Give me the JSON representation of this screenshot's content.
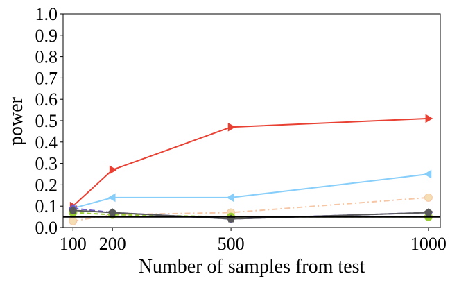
{
  "chart_data": {
    "type": "line",
    "xlabel": "Number of samples from test",
    "ylabel": "power",
    "xlim": [
      75,
      1030
    ],
    "ylim": [
      0.0,
      1.0
    ],
    "x_ticks": [
      100,
      200,
      500,
      1000
    ],
    "x_tick_labels": [
      "100",
      "200",
      "500",
      "1000"
    ],
    "y_ticks": [
      0.0,
      0.1,
      0.2,
      0.3,
      0.4,
      0.5,
      0.6,
      0.7,
      0.8,
      0.9,
      1.0
    ],
    "y_tick_labels": [
      "0.0",
      "0.1",
      "0.2",
      "0.3",
      "0.4",
      "0.5",
      "0.6",
      "0.7",
      "0.8",
      "0.9",
      "1.0"
    ],
    "x": [
      100,
      200,
      500,
      1000
    ],
    "reference_line": {
      "y": 0.05,
      "color": "#000000"
    },
    "series": [
      {
        "values": [
          0.03,
          0.06,
          0.07,
          0.14
        ],
        "color": "#f5c7a6",
        "dash": "8,4,2,4",
        "marker": "circle",
        "marker_fill": "#f5deb3"
      },
      {
        "values": [
          0.07,
          0.06,
          0.05,
          0.05
        ],
        "color": "#9acd32",
        "dash": "6,4",
        "marker": "circle",
        "marker_fill": "#9acd32"
      },
      {
        "values": [
          0.1,
          0.27,
          0.47,
          0.51
        ],
        "color": "#e84032",
        "dash": "",
        "marker": "triangle-right",
        "marker_fill": "#e84032"
      },
      {
        "values": [
          0.09,
          0.14,
          0.14,
          0.25
        ],
        "color": "#87cefa",
        "dash": "",
        "marker": "triangle-left",
        "marker_fill": "#87cefa"
      },
      {
        "values": [
          0.09,
          0.07,
          0.04,
          0.07
        ],
        "color": "#6a5acd",
        "dash": "8,4",
        "marker": "diamond",
        "marker_fill": "#6a5acd"
      },
      {
        "values": [
          0.08,
          0.07,
          0.04,
          0.07
        ],
        "color": "#595959",
        "dash": "",
        "marker": "pentagon",
        "marker_fill": "#595959"
      }
    ]
  }
}
